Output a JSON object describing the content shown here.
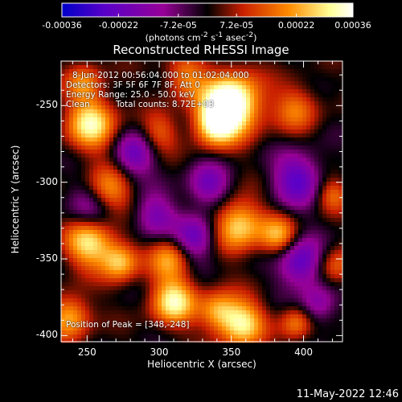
{
  "chart_data": {
    "type": "heatmap",
    "title": "Reconstructed RHESSI Image",
    "xlabel": "Heliocentric X (arcsec)",
    "ylabel": "Heliocentric Y (arcsec)",
    "xlim": [
      232,
      427
    ],
    "ylim": [
      -404,
      -221
    ],
    "xticks": [
      "250",
      "300",
      "350",
      "400"
    ],
    "yticks": [
      "-250",
      "-300",
      "-350",
      "-400"
    ],
    "colorbar": {
      "units_label": "(photons cm",
      "units_parts": [
        "(photons cm",
        "-2",
        " s",
        "-1",
        " asec",
        "-2",
        ")"
      ],
      "ticks": [
        "-0.00036",
        "-0.00022",
        "-7.2e-05",
        "7.2e-05",
        "0.00022",
        "0.00036"
      ],
      "range": [
        -0.00036,
        0.00036
      ],
      "colors": [
        "#0000c8",
        "#5a00c8",
        "#960096",
        "#000000",
        "#c81e00",
        "#ff8c00",
        "#ffff96",
        "#ffffff"
      ]
    },
    "annotations": [
      "8-Jun-2012 00:56:04.000 to 01:02:04.000",
      "Detectors: 3F 5F 6F 7F 8F, Att 0",
      "Energy Range: 25.0 - 50.0 keV",
      "Clean",
      "Total counts: 8.72E+03"
    ],
    "peak_label": "Position of Peak = [348,-248]",
    "peak": [
      348,
      -248
    ],
    "grid": false
  },
  "footer": {
    "timestamp": "11-May-2022 12:46"
  }
}
